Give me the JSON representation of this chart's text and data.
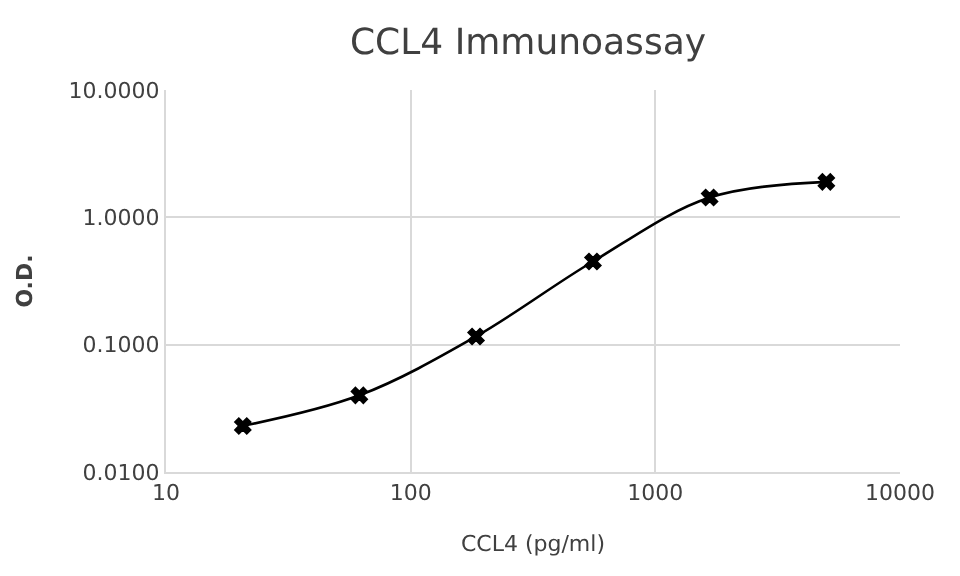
{
  "chart_data": {
    "type": "line",
    "title": "CCL4 Immunoassay",
    "xlabel": "CCL4 (pg/ml)",
    "ylabel": "O.D.",
    "x": [
      20.6,
      61.7,
      185,
      556,
      1667,
      5000
    ],
    "series": [
      {
        "color": "#000000",
        "values": [
          0.023,
          0.04,
          0.116,
          0.45,
          1.43,
          1.9
        ]
      }
    ],
    "log": "xy",
    "xlim": [
      10,
      10000
    ],
    "ylim": [
      0.01,
      10
    ],
    "xticks": [
      10,
      100,
      1000,
      10000
    ],
    "yticks": [
      {
        "value": 0.01,
        "label": "0.0100"
      },
      {
        "value": 0.1,
        "label": "0.1000"
      },
      {
        "value": 1,
        "label": "1.0000"
      },
      {
        "value": 10,
        "label": "10.0000"
      }
    ],
    "grid": true,
    "marker": "cross",
    "line_style": "solid",
    "legend": false
  }
}
